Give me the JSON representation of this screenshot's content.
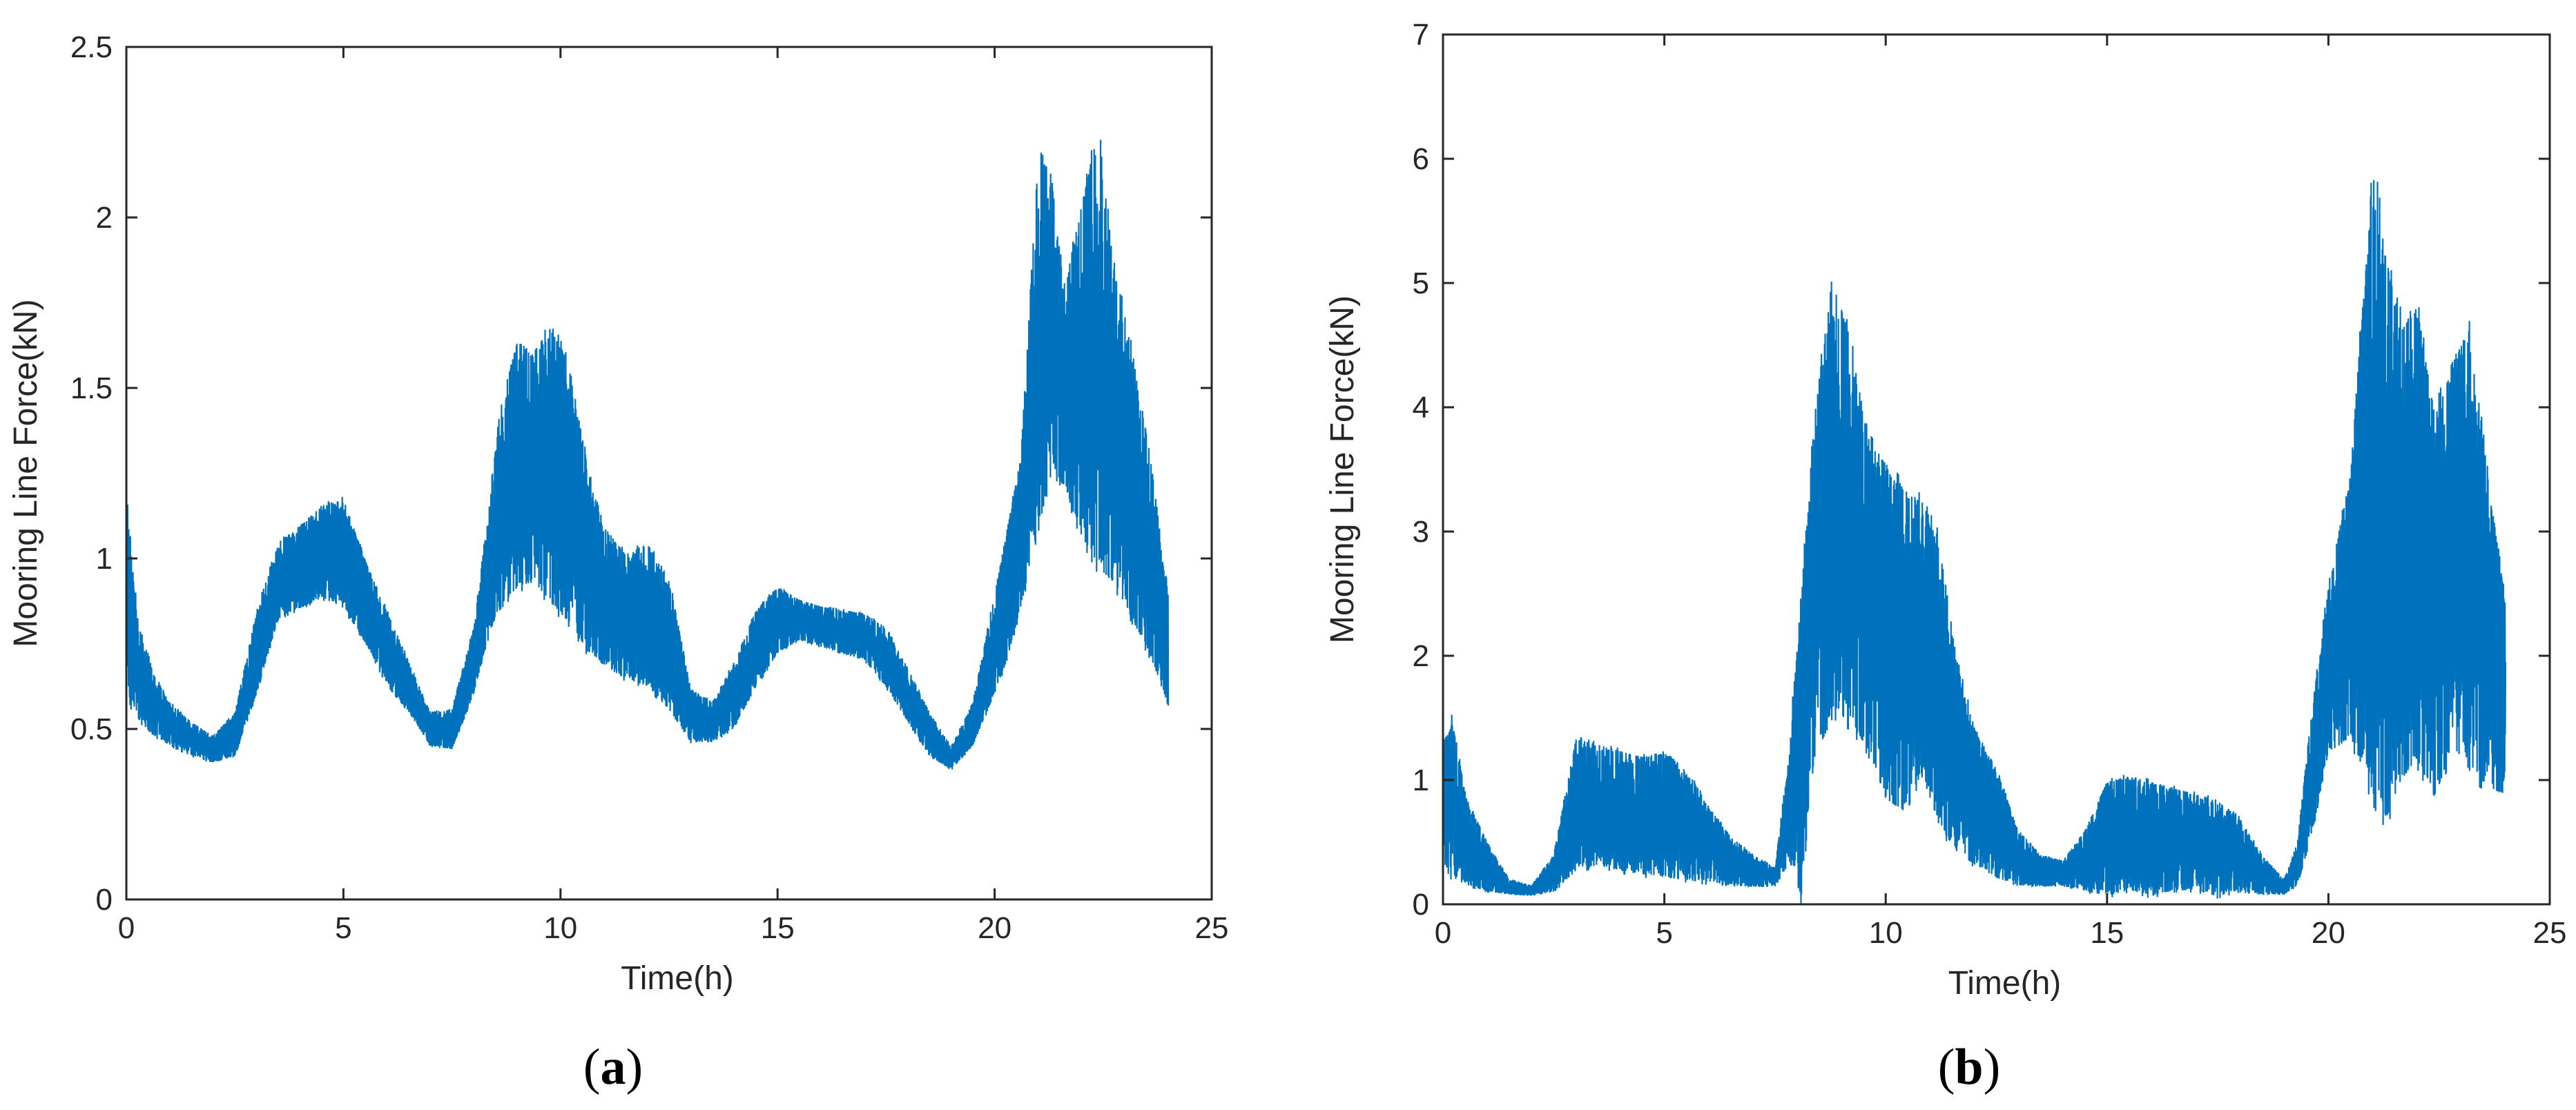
{
  "figure": {
    "panels": [
      {
        "label_open": "(",
        "label_letter": "a",
        "label_close": ")"
      },
      {
        "label_open": "(",
        "label_letter": "b",
        "label_close": ")"
      }
    ]
  },
  "chart_data": [
    {
      "type": "line",
      "panel": "a",
      "title": "",
      "xlabel": "Time(h)",
      "ylabel": "Mooring Line Force(kN)",
      "xlim": [
        0,
        25
      ],
      "ylim": [
        0,
        2.5
      ],
      "xticks": [
        0,
        5,
        10,
        15,
        20,
        25
      ],
      "xtick_labels": [
        "0",
        "5",
        "10",
        "15",
        "20",
        "25"
      ],
      "yticks": [
        0,
        0.5,
        1,
        1.5,
        2,
        2.5
      ],
      "ytick_labels": [
        "0",
        "0.5",
        "1",
        "1.5",
        "2",
        "2.5"
      ],
      "grid": false,
      "color": "#0072BD",
      "series": [
        {
          "description_keys": [
            "t",
            "min",
            "max"
          ],
          "t": [
            0,
            0.1,
            0.3,
            0.6,
            1.0,
            1.5,
            2.0,
            2.5,
            3.0,
            3.5,
            4.0,
            4.5,
            5.0,
            5.5,
            6.0,
            6.5,
            7.0,
            7.5,
            8.0,
            8.3,
            8.6,
            9.0,
            9.4,
            9.8,
            10.2,
            10.6,
            11.0,
            11.5,
            12.0,
            12.5,
            13.0,
            13.5,
            14.0,
            14.5,
            15.0,
            15.5,
            16.0,
            16.5,
            17.0,
            17.5,
            18.0,
            18.5,
            19.0,
            19.5,
            20.0,
            20.3,
            20.6,
            21.0,
            21.3,
            21.6,
            22.0,
            22.4,
            22.8,
            23.2,
            23.6,
            24.0
          ],
          "min": [
            0.62,
            0.55,
            0.52,
            0.48,
            0.45,
            0.42,
            0.4,
            0.42,
            0.6,
            0.82,
            0.85,
            0.88,
            0.85,
            0.75,
            0.62,
            0.55,
            0.45,
            0.44,
            0.6,
            0.75,
            0.85,
            0.9,
            0.92,
            0.85,
            0.8,
            0.72,
            0.68,
            0.64,
            0.62,
            0.55,
            0.46,
            0.46,
            0.5,
            0.62,
            0.72,
            0.76,
            0.74,
            0.72,
            0.7,
            0.62,
            0.52,
            0.42,
            0.38,
            0.45,
            0.6,
            0.7,
            0.85,
            1.05,
            1.25,
            1.2,
            1.05,
            0.95,
            0.9,
            0.8,
            0.7,
            0.56
          ],
          "max": [
            1.22,
            1.05,
            0.8,
            0.68,
            0.58,
            0.52,
            0.48,
            0.55,
            0.85,
            1.05,
            1.1,
            1.16,
            1.18,
            1.0,
            0.85,
            0.7,
            0.55,
            0.56,
            0.8,
            1.1,
            1.45,
            1.65,
            1.62,
            1.7,
            1.58,
            1.3,
            1.1,
            1.02,
            1.05,
            0.95,
            0.62,
            0.58,
            0.7,
            0.85,
            0.92,
            0.88,
            0.86,
            0.85,
            0.84,
            0.8,
            0.68,
            0.55,
            0.45,
            0.58,
            0.9,
            1.1,
            1.3,
            2.2,
            2.15,
            1.8,
            2.05,
            2.3,
            1.85,
            1.6,
            1.3,
            0.9
          ]
        }
      ]
    },
    {
      "type": "line",
      "panel": "b",
      "title": "",
      "xlabel": "Time(h)",
      "ylabel": "Mooring Line Force(kN)",
      "xlim": [
        0,
        25
      ],
      "ylim": [
        0,
        7
      ],
      "xticks": [
        0,
        5,
        10,
        15,
        20,
        25
      ],
      "xtick_labels": [
        "0",
        "5",
        "10",
        "15",
        "20",
        "25"
      ],
      "yticks": [
        0,
        1,
        2,
        3,
        4,
        5,
        6,
        7
      ],
      "ytick_labels": [
        "0",
        "1",
        "2",
        "3",
        "4",
        "5",
        "6",
        "7"
      ],
      "grid": false,
      "color": "#0072BD",
      "series": [
        {
          "description_keys": [
            "t",
            "min",
            "max"
          ],
          "t": [
            0,
            0.2,
            0.5,
            1.0,
            1.5,
            2.0,
            2.5,
            3.0,
            3.5,
            4.0,
            4.5,
            5.0,
            5.5,
            6.0,
            6.5,
            7.0,
            7.5,
            7.8,
            8.1,
            8.4,
            8.8,
            9.2,
            9.6,
            10.0,
            10.4,
            10.8,
            11.2,
            11.6,
            12.0,
            12.5,
            13.0,
            13.5,
            14.0,
            14.5,
            15.0,
            15.5,
            16.0,
            16.5,
            17.0,
            17.5,
            18.0,
            18.5,
            19.0,
            19.3,
            19.6,
            20.0,
            20.5,
            21.0,
            21.3,
            21.6,
            22.0,
            22.4,
            22.8,
            23.2,
            23.6,
            24.0
          ],
          "min": [
            0.25,
            0.2,
            0.15,
            0.1,
            0.08,
            0.07,
            0.1,
            0.25,
            0.3,
            0.25,
            0.22,
            0.2,
            0.18,
            0.16,
            0.15,
            0.14,
            0.14,
            0.3,
            0.0,
            1.2,
            1.5,
            1.4,
            1.2,
            0.8,
            0.7,
            1.0,
            0.6,
            0.4,
            0.3,
            0.2,
            0.15,
            0.14,
            0.15,
            0.1,
            0.05,
            0.1,
            0.05,
            0.1,
            0.1,
            0.05,
            0.1,
            0.08,
            0.08,
            0.15,
            0.5,
            1.2,
            1.3,
            0.8,
            0.6,
            0.9,
            1.1,
            0.8,
            1.2,
            1.0,
            0.9,
            0.85
          ],
          "max": [
            1.3,
            1.55,
            0.9,
            0.5,
            0.2,
            0.15,
            0.4,
            1.35,
            1.3,
            1.25,
            1.2,
            1.25,
            1.1,
            0.8,
            0.55,
            0.4,
            0.3,
            1.2,
            2.6,
            4.0,
            5.15,
            4.6,
            3.8,
            3.6,
            3.4,
            3.3,
            3.0,
            2.0,
            1.45,
            1.1,
            0.6,
            0.4,
            0.35,
            0.6,
            1.0,
            1.05,
            1.0,
            0.95,
            0.9,
            0.85,
            0.7,
            0.4,
            0.2,
            0.5,
            1.5,
            2.6,
            3.5,
            6.1,
            5.3,
            4.8,
            4.9,
            4.0,
            4.45,
            4.7,
            3.5,
            2.45
          ]
        }
      ]
    }
  ]
}
